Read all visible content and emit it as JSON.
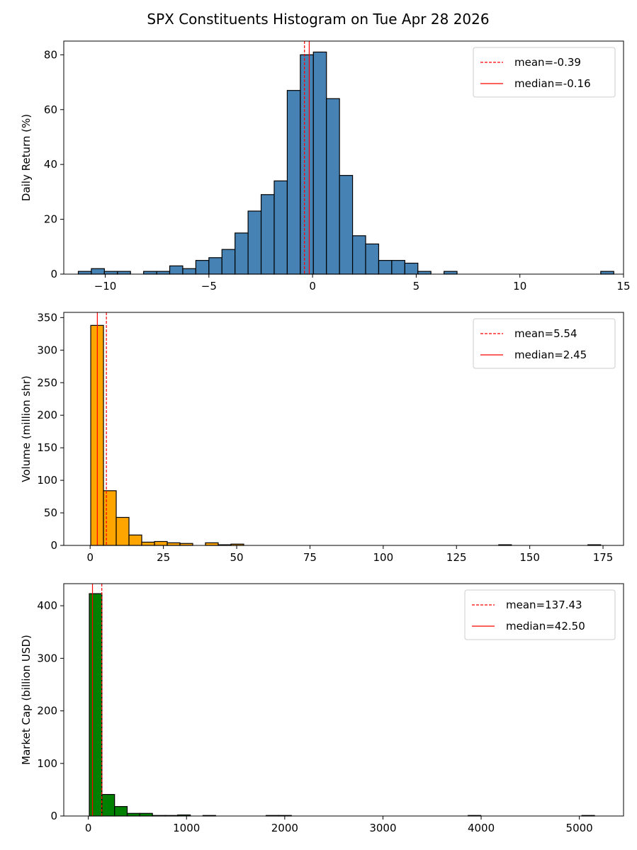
{
  "title": "SPX Constituents Histogram on Tue Apr 28 2026",
  "chart_data": [
    {
      "type": "bar",
      "subtype": "histogram",
      "ylabel": "Daily Return (%)",
      "xlim": [
        -12.0,
        15.0
      ],
      "ylim": [
        0,
        85
      ],
      "xticks": [
        -10,
        -5,
        0,
        5,
        10,
        15
      ],
      "xtick_labels": [
        "−10",
        "−5",
        "0",
        "5",
        "10",
        "15"
      ],
      "yticks": [
        0,
        20,
        40,
        60,
        80
      ],
      "ytick_labels": [
        "0",
        "20",
        "40",
        "60",
        "80"
      ],
      "bin_start": -11.3,
      "bin_width": 0.63,
      "counts": [
        1,
        2,
        1,
        1,
        0,
        1,
        1,
        3,
        2,
        5,
        6,
        9,
        15,
        23,
        29,
        34,
        67,
        80,
        81,
        64,
        36,
        14,
        11,
        5,
        5,
        4,
        1,
        0,
        1,
        0,
        0,
        0,
        0,
        0,
        0,
        0,
        0,
        0,
        0,
        0,
        1
      ],
      "bar_color": "#4682b4",
      "mean": -0.39,
      "median": -0.16,
      "legend": {
        "mean_label": "mean=-0.39",
        "median_label": "median=-0.16",
        "position": "upper right"
      }
    },
    {
      "type": "bar",
      "subtype": "histogram",
      "ylabel": "Volume (million shr)",
      "xlim": [
        -9.0,
        182.0
      ],
      "ylim": [
        0,
        358
      ],
      "xticks": [
        0,
        25,
        50,
        75,
        100,
        125,
        150,
        175
      ],
      "xtick_labels": [
        "0",
        "25",
        "50",
        "75",
        "100",
        "125",
        "150",
        "175"
      ],
      "yticks": [
        0,
        50,
        100,
        150,
        200,
        250,
        300,
        350
      ],
      "ytick_labels": [
        "0",
        "50",
        "100",
        "150",
        "200",
        "250",
        "300",
        "350"
      ],
      "bin_start": 0.2,
      "bin_width": 4.35,
      "counts": [
        338,
        84,
        43,
        16,
        5,
        6,
        4,
        3,
        0,
        4,
        1,
        2,
        0,
        0,
        0,
        0,
        0,
        0,
        0,
        0,
        0,
        0,
        0,
        0,
        0,
        0,
        0,
        0,
        0,
        0,
        0,
        0,
        1,
        0,
        0,
        0,
        0,
        0,
        0,
        1
      ],
      "bar_color": "#ffa500",
      "mean": 5.54,
      "median": 2.45,
      "legend": {
        "mean_label": "mean=5.54",
        "median_label": "median=2.45",
        "position": "upper right"
      }
    },
    {
      "type": "bar",
      "subtype": "histogram",
      "ylabel": "Market Cap (billion USD)",
      "xlim": [
        -250.0,
        5450.0
      ],
      "ylim": [
        0,
        442
      ],
      "xticks": [
        0,
        1000,
        2000,
        3000,
        4000,
        5000
      ],
      "xtick_labels": [
        "0",
        "1000",
        "2000",
        "3000",
        "4000",
        "5000"
      ],
      "yticks": [
        0,
        100,
        200,
        300,
        400
      ],
      "ytick_labels": [
        "0",
        "100",
        "200",
        "300",
        "400"
      ],
      "bin_start": 10.0,
      "bin_width": 128.6,
      "counts": [
        423,
        41,
        18,
        5,
        5,
        1,
        1,
        2,
        0,
        1,
        0,
        0,
        0,
        0,
        1,
        1,
        0,
        0,
        0,
        0,
        0,
        0,
        0,
        0,
        0,
        0,
        0,
        0,
        0,
        0,
        1,
        0,
        0,
        0,
        0,
        0,
        0,
        0,
        0,
        1
      ],
      "bar_color": "#008000",
      "mean": 137.43,
      "median": 42.5,
      "legend": {
        "mean_label": "mean=137.43",
        "median_label": "median=42.50",
        "position": "upper right"
      }
    }
  ]
}
